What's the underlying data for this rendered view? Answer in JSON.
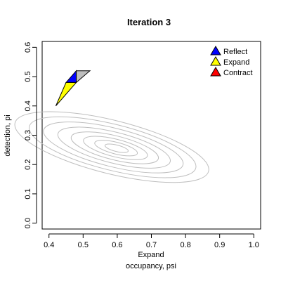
{
  "chart_data": {
    "type": "scatter",
    "title": "Iteration 3",
    "xlabel": "occupancy, psi",
    "ylabel": "detection, pi",
    "annotation": "Expand",
    "xlim": [
      0.38,
      1.02
    ],
    "ylim": [
      -0.02,
      0.62
    ],
    "xticks": [
      0.4,
      0.5,
      0.6,
      0.7,
      0.8,
      0.9,
      1.0
    ],
    "xtick_labels": [
      "0.4",
      "0.5",
      "0.6",
      "0.7",
      "0.8",
      "0.9",
      "1.0"
    ],
    "yticks": [
      0.0,
      0.1,
      0.2,
      0.3,
      0.4,
      0.5,
      0.6
    ],
    "ytick_labels": [
      "0.0",
      "0.1",
      "0.2",
      "0.3",
      "0.4",
      "0.5",
      "0.6"
    ],
    "grid": false,
    "legend_position": "top-right",
    "legend": [
      {
        "label": "Reflect",
        "color": "#0000ff"
      },
      {
        "label": "Expand",
        "color": "#ffff00"
      },
      {
        "label": "Contract",
        "color": "#ff0000"
      }
    ],
    "contour_center": [
      0.6,
      0.255
    ],
    "contour_color": "#bebebe",
    "triangles": [
      {
        "color": "#ffff00",
        "vertices": [
          [
            0.42,
            0.4
          ],
          [
            0.45,
            0.48
          ],
          [
            0.48,
            0.48
          ]
        ]
      },
      {
        "color": "#0000ff",
        "vertices": [
          [
            0.45,
            0.48
          ],
          [
            0.48,
            0.52
          ],
          [
            0.48,
            0.48
          ]
        ]
      },
      {
        "color": "#bebebe",
        "vertices": [
          [
            0.48,
            0.48
          ],
          [
            0.48,
            0.52
          ],
          [
            0.52,
            0.52
          ]
        ]
      }
    ]
  }
}
